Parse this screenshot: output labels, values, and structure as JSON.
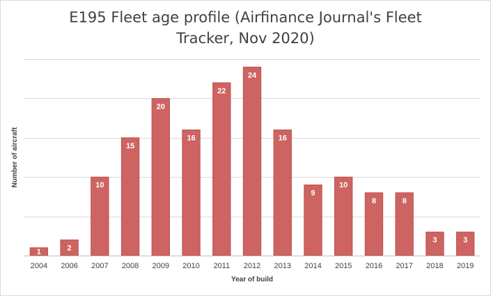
{
  "chart_data": {
    "type": "bar",
    "title_lines": [
      "E195 Fleet age profile (Airfinance Journal's Fleet",
      "Tracker, Nov 2020)"
    ],
    "xlabel": "Year of build",
    "ylabel": "Number of aircraft",
    "categories": [
      "2004",
      "2006",
      "2007",
      "2008",
      "2009",
      "2010",
      "2011",
      "2012",
      "2013",
      "2014",
      "2015",
      "2016",
      "2017",
      "2018",
      "2019"
    ],
    "values": [
      1,
      2,
      10,
      15,
      20,
      16,
      22,
      24,
      16,
      9,
      10,
      8,
      8,
      3,
      3
    ],
    "data_labels": [
      "1",
      "2",
      "10",
      "15",
      "20",
      "16",
      "22",
      "24",
      "16",
      "9",
      "10",
      "8",
      "8",
      "3",
      "3"
    ],
    "ylim": [
      0,
      25
    ],
    "ytick_step": 5,
    "y_tick_labels_shown": false,
    "grid": true,
    "legend": "none",
    "colors": {
      "bar": "#c0504d",
      "bar_fill": "#cd6462",
      "grid": "#d9d9d9",
      "axis": "#bfbfbf",
      "text": "#404040",
      "data_label": "#ffffff"
    }
  }
}
